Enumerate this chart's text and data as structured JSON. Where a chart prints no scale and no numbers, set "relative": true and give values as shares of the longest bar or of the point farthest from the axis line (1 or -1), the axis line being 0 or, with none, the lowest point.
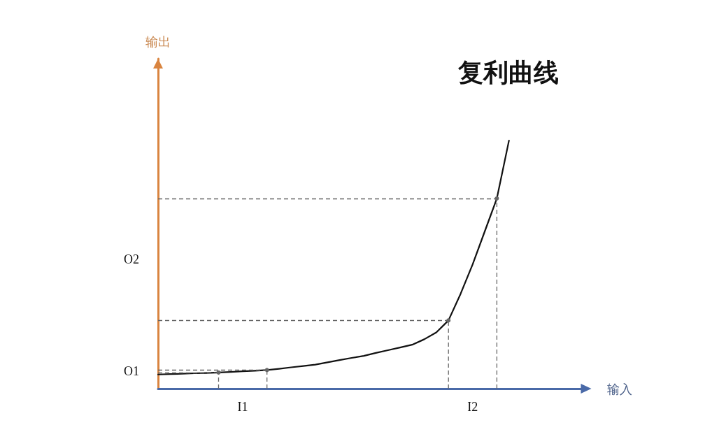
{
  "chart_data": {
    "type": "line",
    "title": "复利曲线",
    "xlabel": "输入",
    "relative": true,
    "categories": [
      null,
      null,
      null,
      null,
      null,
      null,
      null,
      "I1",
      null,
      null,
      null,
      null,
      null,
      null,
      null,
      null,
      null,
      null,
      null,
      null,
      null,
      null,
      null,
      null,
      null,
      null,
      "I2",
      null,
      null,
      null,
      null,
      null,
      null,
      null,
      null,
      null
    ],
    "series": [
      {
        "color": "#111111",
        "values": [
          0.057,
          0.059,
          0.06,
          0.062,
          0.063,
          0.065,
          0.067,
          0.07,
          0.072,
          0.075,
          0.08,
          0.086,
          0.091,
          0.097,
          0.106,
          0.115,
          0.124,
          0.132,
          0.144,
          0.155,
          0.166,
          0.177,
          0.199,
          0.227,
          0.275,
          0.382,
          0.501,
          0.634,
          0.767,
          1,
          null,
          null,
          null,
          null,
          null,
          null
        ]
      },
      {
        "type": "lollipop",
        "color": "#666666",
        "line_style": "dashed",
        "marker": "circle",
        "values": [
          null,
          null,
          null,
          null,
          null,
          0.065,
          null,
          null,
          null,
          0.075,
          null,
          null,
          null,
          null,
          null,
          null,
          null,
          null,
          null,
          null,
          null,
          null,
          null,
          null,
          0.275,
          null,
          null,
          null,
          0.767,
          null,
          null,
          null,
          null,
          null,
          null,
          null
        ]
      }
    ],
    "marker": "none",
    "ref_lines": [
      {
        "axis": "y",
        "value": 0.065,
        "color": "#666666",
        "line_style": "dashed"
      },
      {
        "axis": "y",
        "value": 0.075,
        "color": "#666666",
        "line_style": "dashed"
      },
      {
        "axis": "y",
        "value": 0.275,
        "color": "#666666",
        "line_style": "dashed"
      },
      {
        "axis": "y",
        "value": 0.767,
        "color": "#666666",
        "line_style": "dashed"
      }
    ],
    "annotations": [
      "O1",
      "O2",
      "输出"
    ]
  }
}
